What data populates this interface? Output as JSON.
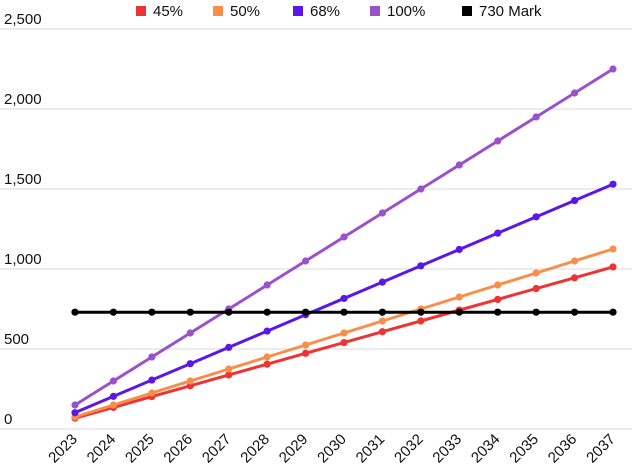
{
  "chart_data": {
    "type": "line",
    "title": "",
    "xlabel": "",
    "ylabel": "",
    "x": [
      "2023",
      "2024",
      "2025",
      "2026",
      "2027",
      "2028",
      "2029",
      "2030",
      "2031",
      "2032",
      "2033",
      "2034",
      "2035",
      "2036",
      "2037"
    ],
    "ylim": [
      0,
      2500
    ],
    "yticks": [
      "0",
      "500",
      "1,000",
      "1,500",
      "2,000",
      "2,500"
    ],
    "grid": "horizontal",
    "legend_position": "top",
    "series": [
      {
        "name": "45%",
        "color": "#ee3333",
        "values": [
          68,
          135,
          203,
          270,
          338,
          405,
          473,
          540,
          608,
          675,
          743,
          810,
          878,
          945,
          1013
        ]
      },
      {
        "name": "50%",
        "color": "#f98e4b",
        "values": [
          75,
          150,
          225,
          300,
          375,
          450,
          525,
          600,
          675,
          750,
          825,
          900,
          975,
          1050,
          1125
        ]
      },
      {
        "name": "68%",
        "color": "#5a17e8",
        "values": [
          102,
          204,
          306,
          408,
          510,
          612,
          714,
          816,
          918,
          1020,
          1122,
          1224,
          1326,
          1428,
          1530
        ]
      },
      {
        "name": "100%",
        "color": "#9b51c8",
        "values": [
          150,
          300,
          450,
          600,
          750,
          900,
          1050,
          1200,
          1350,
          1500,
          1650,
          1800,
          1950,
          2100,
          2250
        ]
      },
      {
        "name": "730 Mark",
        "color": "#000000",
        "values": [
          730,
          730,
          730,
          730,
          730,
          730,
          730,
          730,
          730,
          730,
          730,
          730,
          730,
          730,
          730
        ]
      }
    ]
  }
}
